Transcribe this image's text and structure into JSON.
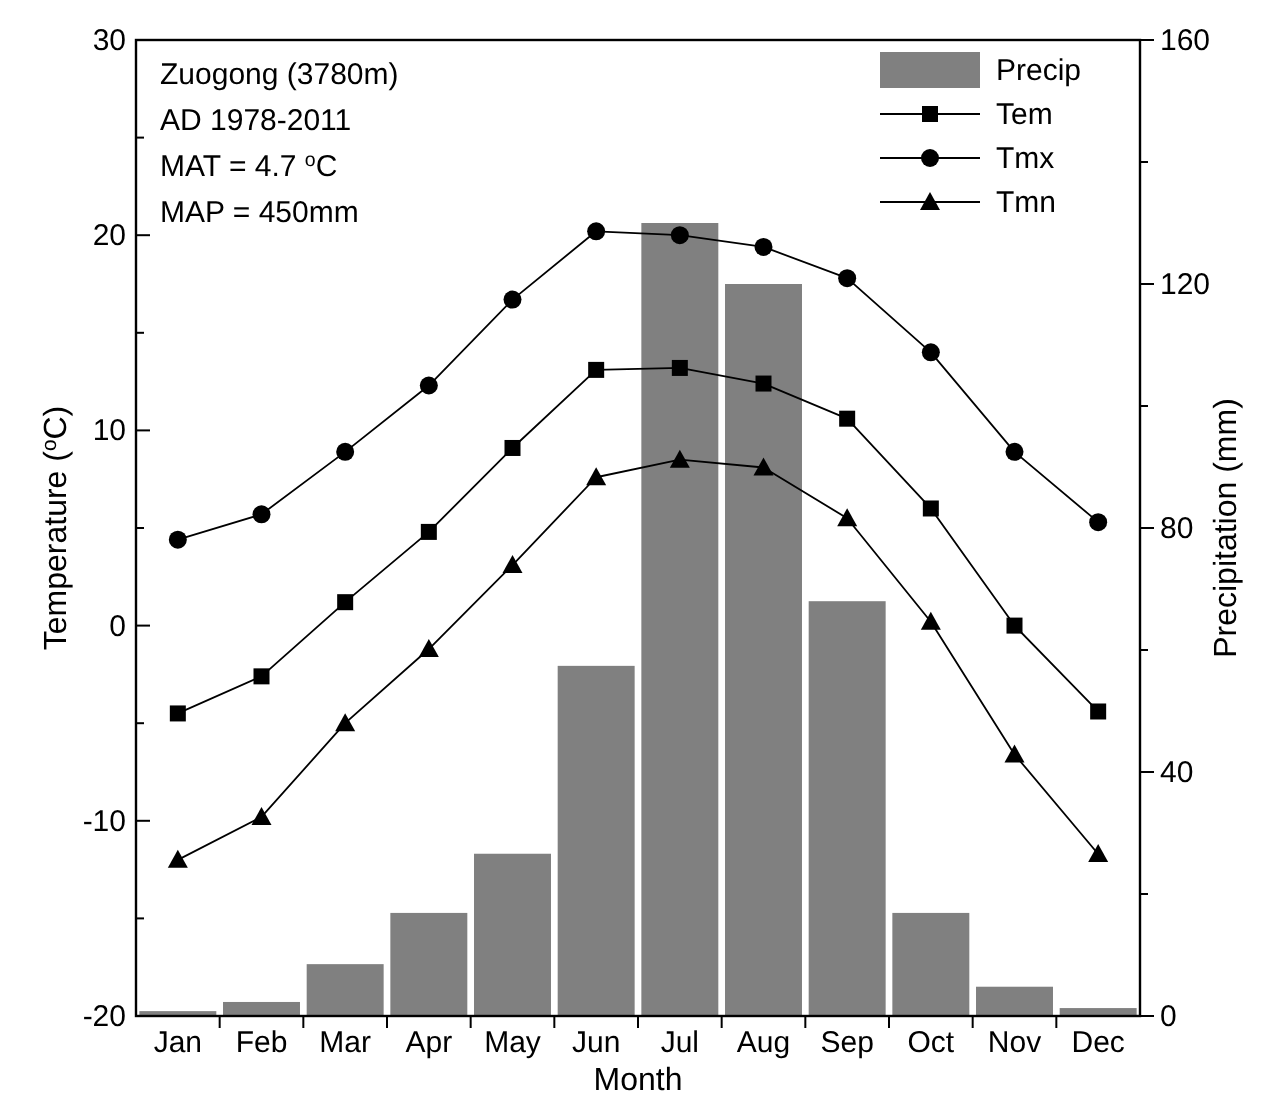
{
  "chart_data": {
    "type": "bar",
    "xlabel": "Month",
    "ylabel": "Temperature ($^{o}$C)",
    "y2label": "Precipitation (mm)",
    "categories": [
      "Jan",
      "Feb",
      "Mar",
      "Apr",
      "May",
      "Jun",
      "Jul",
      "Aug",
      "Sep",
      "Oct",
      "Nov",
      "Dec"
    ],
    "series": [
      {
        "name": "Precip",
        "axis": "y2",
        "color": "#808080",
        "values": [
          0.8,
          2.3,
          8.5,
          16.9,
          26.6,
          57.4,
          130,
          120,
          68,
          16.9,
          4.8,
          1.3
        ]
      },
      {
        "name": "Tem",
        "type": "line",
        "marker": "square",
        "color": "#000000",
        "values": [
          -4.5,
          -2.6,
          1.2,
          4.8,
          9.1,
          13.1,
          13.2,
          12.4,
          10.6,
          6.0,
          0,
          -4.4
        ]
      },
      {
        "name": "Tmx",
        "type": "line",
        "marker": "circle",
        "color": "#000000",
        "values": [
          4.4,
          5.7,
          8.9,
          12.3,
          16.7,
          20.2,
          20.0,
          19.4,
          17.8,
          14.0,
          8.9,
          5.3
        ]
      },
      {
        "name": "Tmn",
        "type": "line",
        "marker": "triangle",
        "color": "#000000",
        "values": [
          -12.0,
          -9.8,
          -5.0,
          -1.2,
          3.1,
          7.6,
          8.5,
          8.1,
          5.5,
          0.2,
          -6.6,
          -11.7
        ]
      }
    ],
    "ylim": [
      -20,
      30
    ],
    "yticks": [
      -20,
      {
        "value": -15,
        "label": null
      },
      -10,
      {
        "value": -5,
        "label": null
      },
      0,
      {
        "value": 5,
        "label": null
      },
      10,
      {
        "value": 15,
        "label": null
      },
      20,
      {
        "value": 25,
        "label": null
      },
      30
    ],
    "y2lim": [
      0,
      160
    ],
    "y2ticks": [
      0,
      {
        "value": 20,
        "label": null
      },
      40,
      {
        "value": 60,
        "label": null
      },
      80,
      {
        "value": 100,
        "label": null
      },
      120,
      {
        "value": 140,
        "label": null
      },
      160
    ],
    "annotations": [
      "Zuogong (3780m)",
      "AD 1978-2011",
      "MAT = 4.7 $^{o}$C",
      "MAP = 450mm"
    ],
    "legend": "top right",
    "grid": false,
    "line_style": "solid"
  }
}
